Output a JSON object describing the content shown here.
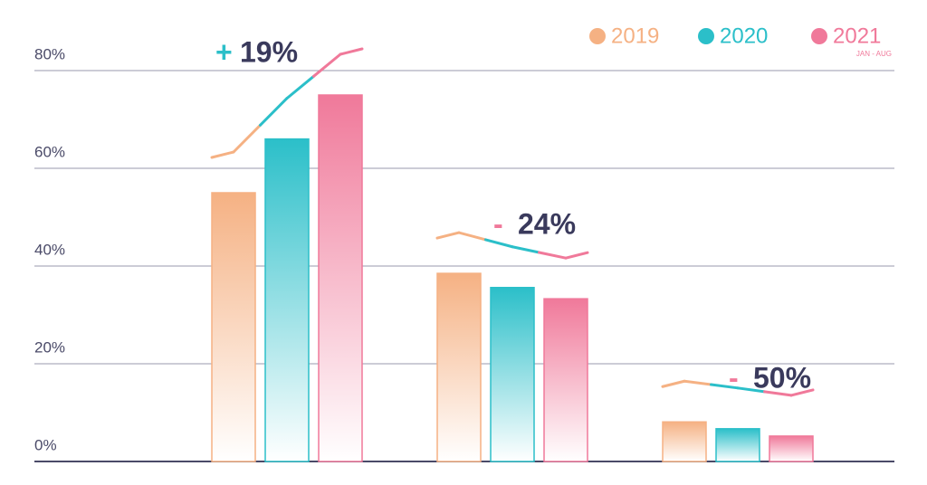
{
  "chart_data": {
    "type": "bar",
    "categories": [
      null,
      null,
      null
    ],
    "series": [
      {
        "name": "2019",
        "color": "#f5b183",
        "values": [
          55,
          38.5,
          8.1
        ]
      },
      {
        "name": "2020",
        "color": "#2bbfc9",
        "values": [
          66,
          35.6,
          6.7
        ]
      },
      {
        "name": "2021",
        "color": "#f0799a",
        "values": [
          75,
          33.3,
          5.2
        ],
        "note": "JAN - AUG"
      }
    ],
    "annotations": [
      {
        "sign": "+",
        "text": "19%"
      },
      {
        "sign": "-",
        "text": "24%"
      },
      {
        "sign": "-",
        "text": "50%"
      }
    ],
    "ylim": [
      0,
      80
    ],
    "yticks": [
      {
        "value": 0,
        "label": "0%"
      },
      {
        "value": 20,
        "label": "20%"
      },
      {
        "value": 40,
        "label": "40%"
      },
      {
        "value": 60,
        "label": "60%"
      },
      {
        "value": 80,
        "label": "80%"
      }
    ],
    "grid": true
  }
}
